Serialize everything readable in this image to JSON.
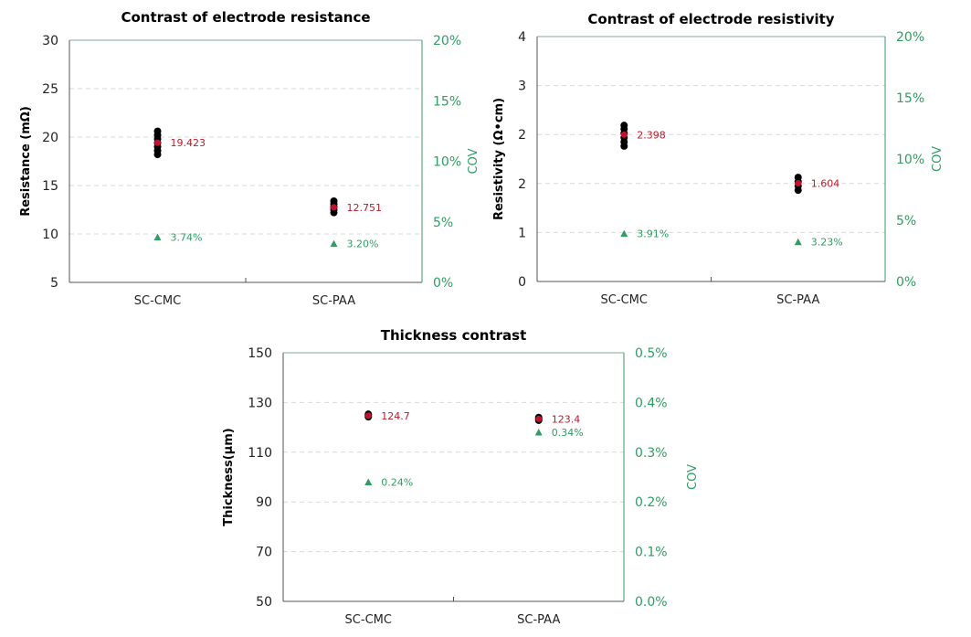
{
  "colors": {
    "points": "#000000",
    "mean": "#c8102e",
    "mean_label": "#c0182b",
    "cov": "#2e9e63",
    "grid": "#d9d9d9",
    "axis": "#7f7f7f"
  },
  "chart_data": [
    {
      "type": "scatter",
      "title": "Contrast of electrode resistance",
      "ylabel": "Resistance  (mΩ)",
      "y2label": "COV",
      "categories": [
        "SC-CMC",
        "SC-PAA"
      ],
      "ylim": [
        5,
        30
      ],
      "yticks": [
        5,
        10,
        15,
        20,
        25,
        30
      ],
      "ytick_labels": [
        "5",
        "10",
        "15",
        "20",
        "25",
        "30"
      ],
      "y2lim": [
        0,
        20
      ],
      "y2ticks": [
        0,
        5,
        10,
        15,
        20
      ],
      "y2tick_labels": [
        "0%",
        "5%",
        "10%",
        "15%",
        "20%"
      ],
      "grid": true,
      "points": [
        [
          18.2,
          18.6,
          19.0,
          19.4,
          19.8,
          20.2,
          20.6
        ],
        [
          12.2,
          12.5,
          12.8,
          13.1,
          13.4
        ]
      ],
      "mean": [
        19.423,
        12.751
      ],
      "mean_labels": [
        "19.423",
        "12.751"
      ],
      "cov": [
        3.74,
        3.2
      ],
      "cov_labels": [
        "3.74%",
        "3.20%"
      ]
    },
    {
      "type": "scatter",
      "title": "Contrast of electrode resistivity",
      "ylabel": "Resistivity (Ω•cm)",
      "y2label": "COV",
      "categories": [
        "SC-CMC",
        "SC-PAA"
      ],
      "ylim": [
        0,
        4
      ],
      "yticks": [
        0,
        0.8,
        1.6,
        2.4,
        3.2,
        4.0
      ],
      "ytick_labels": [
        "0",
        "1",
        "2",
        "2",
        "3",
        "4"
      ],
      "y2lim": [
        0,
        20
      ],
      "y2ticks": [
        0,
        5,
        10,
        15,
        20
      ],
      "y2tick_labels": [
        "0%",
        "5%",
        "10%",
        "15%",
        "20%"
      ],
      "grid": true,
      "points": [
        [
          2.21,
          2.28,
          2.35,
          2.42,
          2.49,
          2.55
        ],
        [
          1.49,
          1.56,
          1.63,
          1.7
        ]
      ],
      "mean": [
        2.398,
        1.604
      ],
      "mean_labels": [
        "2.398",
        "1.604"
      ],
      "cov": [
        3.91,
        3.23
      ],
      "cov_labels": [
        "3.91%",
        "3.23%"
      ]
    },
    {
      "type": "scatter",
      "title": "Thickness contrast",
      "ylabel": "Thickness(μm)",
      "y2label": "COV",
      "categories": [
        "SC-CMC",
        "SC-PAA"
      ],
      "ylim": [
        50,
        150
      ],
      "yticks": [
        50,
        70,
        90,
        110,
        130,
        150
      ],
      "ytick_labels": [
        "50",
        "70",
        "90",
        "110",
        "130",
        "150"
      ],
      "y2lim": [
        0,
        0.5
      ],
      "y2ticks": [
        0,
        0.1,
        0.2,
        0.3,
        0.4,
        0.5
      ],
      "y2tick_labels": [
        "0.0%",
        "0.1%",
        "0.2%",
        "0.3%",
        "0.4%",
        "0.5%"
      ],
      "grid": true,
      "points": [
        [
          124.2,
          124.7,
          125.3
        ],
        [
          122.8,
          123.4,
          124.0
        ]
      ],
      "mean": [
        124.7,
        123.4
      ],
      "mean_labels": [
        "124.7",
        "123.4"
      ],
      "cov": [
        0.24,
        0.34
      ],
      "cov_labels": [
        "0.24%",
        "0.34%"
      ]
    }
  ]
}
